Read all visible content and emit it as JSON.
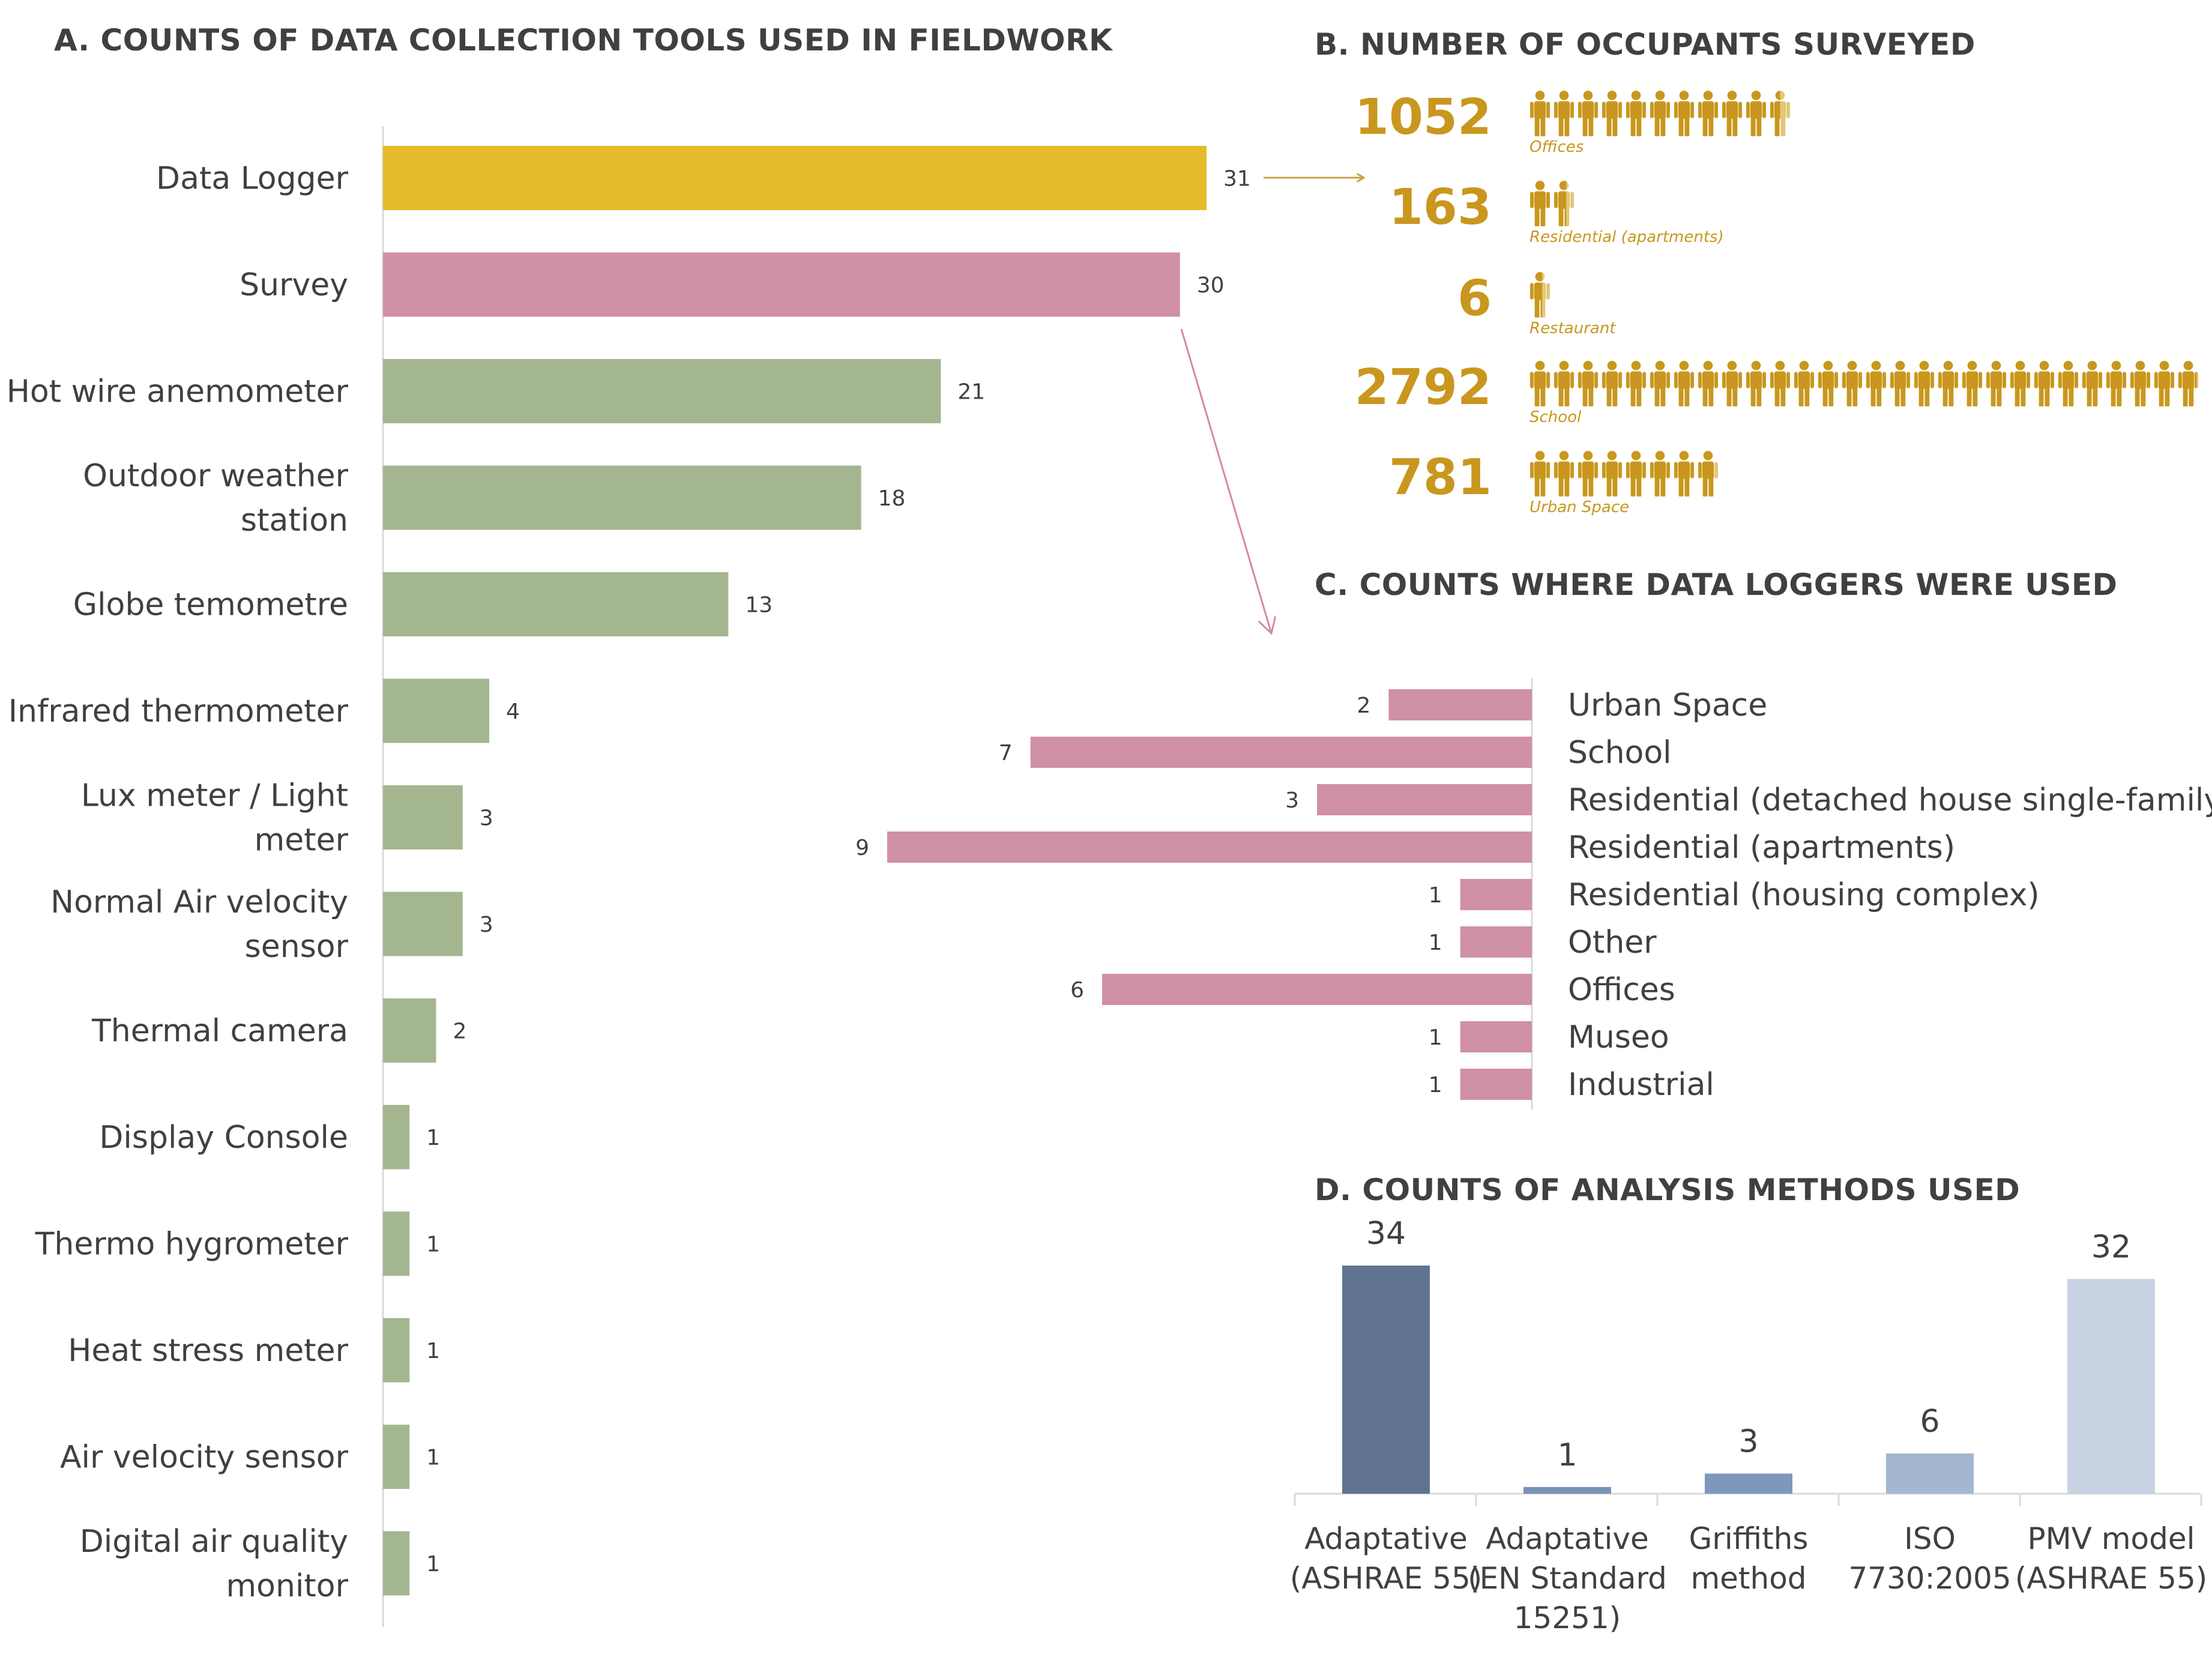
{
  "panels": {
    "a_title": "A. COUNTS OF DATA COLLECTION TOOLS USED IN FIELDWORK",
    "b_title": "B. NUMBER OF OCCUPANTS SURVEYED",
    "c_title": "C. COUNTS WHERE DATA LOGGERS WERE USED",
    "d_title": "D. COUNTS OF ANALYSIS METHODS USED"
  },
  "colors": {
    "gold": "#e4bb2b",
    "pink": "#d090a6",
    "green": "#a4b68f",
    "person_gold": "#c9971e",
    "person_light": "#e2c777",
    "d_series": [
      "#60748f",
      "#7a93b6",
      "#7e98bd",
      "#a5b6d0",
      "#c7d2e2"
    ]
  },
  "occupants": [
    {
      "count": "1052",
      "label": "Offices",
      "icons": 10.5
    },
    {
      "count": "163",
      "label": "Residential (apartments)",
      "icons": 1.6
    },
    {
      "count": "6",
      "label": "Restaurant",
      "icons": 0.6
    },
    {
      "count": "2792",
      "label": "School",
      "icons": 27.9
    },
    {
      "count": "781",
      "label": "Urban Space",
      "icons": 7.8
    }
  ],
  "chart_data": [
    {
      "type": "bar",
      "orientation": "horizontal",
      "title": "A. COUNTS OF DATA COLLECTION TOOLS USED IN FIELDWORK",
      "categories": [
        [
          "Data Logger"
        ],
        [
          "Survey"
        ],
        [
          "Hot wire anemometer"
        ],
        [
          "Outdoor weather",
          "station"
        ],
        [
          "Globe temometre"
        ],
        [
          "Infrared thermometer"
        ],
        [
          "Lux meter / Light",
          "meter"
        ],
        [
          "Normal Air velocity",
          "sensor"
        ],
        [
          "Thermal camera"
        ],
        [
          "Display Console"
        ],
        [
          "Thermo hygrometer"
        ],
        [
          "Heat stress meter"
        ],
        [
          "Air velocity sensor"
        ],
        [
          "Digital air quality",
          "monitor"
        ]
      ],
      "values": [
        31,
        30,
        21,
        18,
        13,
        4,
        3,
        3,
        2,
        1,
        1,
        1,
        1,
        1
      ],
      "bar_colors": [
        "gold",
        "pink",
        "green",
        "green",
        "green",
        "green",
        "green",
        "green",
        "green",
        "green",
        "green",
        "green",
        "green",
        "green"
      ],
      "xlim": [
        0,
        31
      ]
    },
    {
      "type": "bar",
      "orientation": "horizontal-reversed",
      "title": "C. COUNTS WHERE DATA LOGGERS WERE USED",
      "categories": [
        "Urban Space",
        "School",
        "Residential (detached house single-family )",
        "Residential (apartments)",
        "Residential  (housing complex)",
        "Other",
        "Offices",
        "Museo",
        "Industrial"
      ],
      "values": [
        2,
        7,
        3,
        9,
        1,
        1,
        6,
        1,
        1
      ],
      "xlim": [
        0,
        9
      ]
    },
    {
      "type": "bar",
      "orientation": "vertical",
      "title": "D. COUNTS OF ANALYSIS METHODS USED",
      "categories": [
        [
          "Adaptative",
          "(ASHRAE 55)"
        ],
        [
          "Adaptative",
          "(EN Standard",
          "15251)"
        ],
        [
          "Griffiths",
          "method"
        ],
        [
          "ISO",
          "7730:2005"
        ],
        [
          "PMV model",
          "(ASHRAE 55)"
        ]
      ],
      "values": [
        34,
        1,
        3,
        6,
        32
      ],
      "ylim": [
        0,
        34
      ]
    }
  ]
}
